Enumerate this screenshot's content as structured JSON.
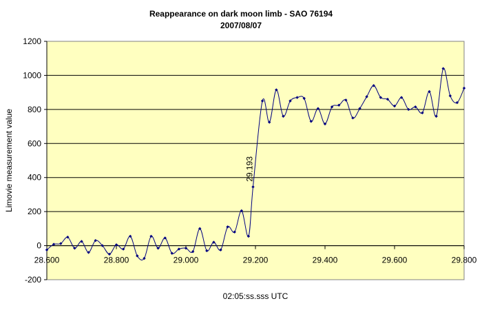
{
  "chart_data": {
    "type": "line",
    "title": "Reappearance on dark moon limb - SAO 76194",
    "subtitle": "2007/08/07",
    "xlabel": "02:05:ss.sss UTC",
    "ylabel": "Limovie measurement value",
    "xlim": [
      28.6,
      29.8
    ],
    "ylim": [
      -200,
      1200
    ],
    "x_ticks": [
      "28.600",
      "28.800",
      "29.000",
      "29.200",
      "29.400",
      "29.600",
      "29.800"
    ],
    "y_ticks": [
      "-200",
      "0",
      "200",
      "400",
      "600",
      "800",
      "1000",
      "1200"
    ],
    "grid": "horizontal",
    "plot_background": "#ffffc0",
    "line_color": "#000080",
    "annotation": {
      "text": "29.193",
      "x": 29.193,
      "y": 450
    },
    "series": [
      {
        "x": [
          28.6,
          28.62,
          28.64,
          28.66,
          28.68,
          28.7,
          28.72,
          28.74,
          28.76,
          28.78,
          28.8,
          28.82,
          28.84,
          28.86,
          28.88,
          28.9,
          28.92,
          28.94,
          28.96,
          28.98,
          29.0,
          29.02,
          29.04,
          29.06,
          29.08,
          29.1,
          29.12,
          29.14,
          29.16,
          29.18,
          29.193,
          29.22,
          29.24,
          29.26,
          29.28,
          29.3,
          29.32,
          29.34,
          29.36,
          29.38,
          29.4,
          29.42,
          29.44,
          29.46,
          29.48,
          29.5,
          29.52,
          29.54,
          29.56,
          29.58,
          29.6,
          29.62,
          29.64,
          29.66,
          29.68,
          29.7,
          29.72,
          29.74,
          29.76,
          29.78,
          29.8
        ],
        "y": [
          -25,
          8,
          12,
          50,
          -15,
          25,
          -40,
          30,
          0,
          -50,
          5,
          -20,
          55,
          -60,
          -75,
          55,
          -15,
          45,
          -45,
          -20,
          -15,
          -35,
          100,
          -30,
          20,
          -25,
          110,
          80,
          205,
          55,
          345,
          850,
          725,
          915,
          760,
          850,
          870,
          865,
          730,
          805,
          715,
          815,
          825,
          855,
          750,
          805,
          875,
          940,
          870,
          860,
          820,
          870,
          800,
          815,
          780,
          905,
          760,
          1040,
          880,
          840,
          925
        ]
      }
    ]
  }
}
